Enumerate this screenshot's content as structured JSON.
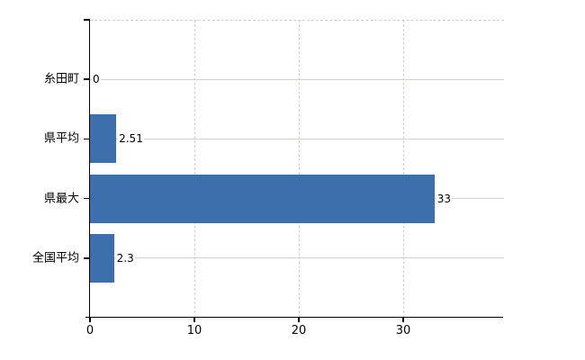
{
  "chart_data": {
    "type": "bar",
    "orientation": "horizontal",
    "title": "",
    "xlabel": "",
    "ylabel": "",
    "categories": [
      "糸田町",
      "県平均",
      "県最大",
      "全国平均"
    ],
    "values": [
      0,
      2.51,
      33,
      2.3
    ],
    "value_labels": [
      "0",
      "2.51",
      "33",
      "2.3"
    ],
    "xticks": [
      0,
      10,
      20,
      30
    ],
    "xtick_labels": [
      "0",
      "10",
      "20",
      "30"
    ],
    "xlim": [
      0,
      39.7
    ],
    "grid": true,
    "legend": false,
    "colors": {
      "bar": "#3c6fac",
      "grid_horizontal": "#ccd4cc",
      "grid_vertical": "#c8d2c8",
      "axis": "#000000",
      "text": "#000000",
      "background": "#ffffff"
    }
  }
}
